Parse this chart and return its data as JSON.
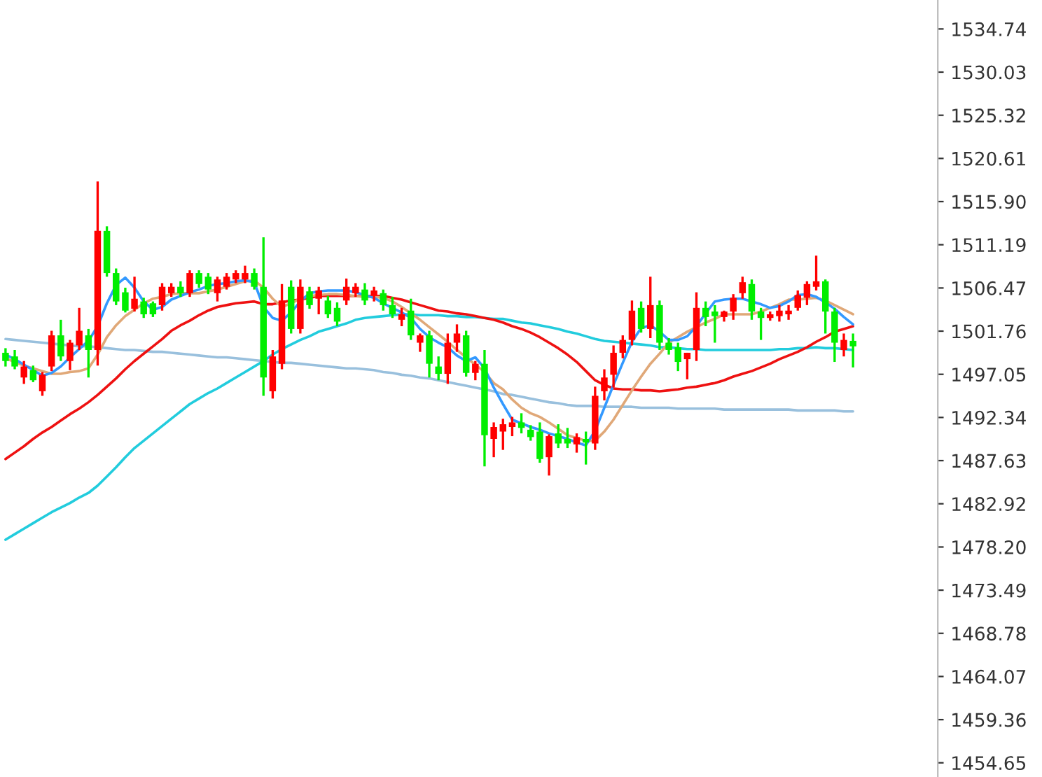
{
  "chart_data": {
    "type": "candlestick",
    "categories": [
      null,
      null,
      null,
      null,
      null,
      null,
      null,
      null,
      null,
      null,
      null,
      null,
      null,
      null,
      null,
      null,
      null,
      null,
      null,
      null,
      null,
      null,
      null,
      null,
      null,
      null,
      null,
      null,
      null,
      null,
      null,
      null,
      null,
      null,
      null,
      null,
      null,
      null,
      null,
      null,
      null,
      null,
      null,
      null,
      null,
      null,
      null,
      null,
      null,
      null,
      null,
      null,
      null,
      null,
      null,
      null,
      null,
      null,
      null,
      null,
      null,
      null,
      null,
      null,
      null,
      null,
      null,
      null,
      null,
      null,
      null,
      null,
      null,
      null,
      null,
      null,
      null,
      null,
      null,
      null,
      null,
      null,
      null,
      null,
      null,
      null,
      null,
      null,
      null,
      null,
      null,
      null,
      null
    ],
    "ohlc": [
      [
        1499.4,
        1499.9,
        1497.9,
        1498.5
      ],
      [
        1499.0,
        1499.7,
        1497.6,
        1497.9
      ],
      [
        1496.7,
        1498.5,
        1496.0,
        1497.9
      ],
      [
        1497.5,
        1498.0,
        1496.2,
        1496.4
      ],
      [
        1495.2,
        1497.3,
        1494.7,
        1497.0
      ],
      [
        1497.9,
        1501.8,
        1497.4,
        1501.3
      ],
      [
        1501.3,
        1503.0,
        1498.5,
        1499.0
      ],
      [
        1498.5,
        1500.8,
        1497.5,
        1500.5
      ],
      [
        1500.2,
        1504.3,
        1499.7,
        1501.8
      ],
      [
        1501.3,
        1502.0,
        1496.7,
        1499.7
      ],
      [
        1499.7,
        1518.1,
        1498.0,
        1512.7
      ],
      [
        1512.7,
        1513.2,
        1507.7,
        1508.1
      ],
      [
        1508.1,
        1508.6,
        1504.6,
        1505.0
      ],
      [
        1506.0,
        1506.5,
        1503.8,
        1504.0
      ],
      [
        1504.2,
        1507.7,
        1503.9,
        1505.3
      ],
      [
        1505.0,
        1505.4,
        1503.2,
        1503.6
      ],
      [
        1504.8,
        1505.0,
        1503.3,
        1503.6
      ],
      [
        1504.6,
        1507.0,
        1504.0,
        1506.6
      ],
      [
        1505.9,
        1507.0,
        1505.5,
        1506.6
      ],
      [
        1506.6,
        1507.2,
        1505.5,
        1505.9
      ],
      [
        1505.9,
        1508.4,
        1505.5,
        1508.1
      ],
      [
        1508.1,
        1508.4,
        1506.5,
        1506.9
      ],
      [
        1507.7,
        1508.1,
        1505.8,
        1506.3
      ],
      [
        1505.9,
        1507.7,
        1505.0,
        1507.4
      ],
      [
        1506.6,
        1508.1,
        1506.3,
        1507.7
      ],
      [
        1507.4,
        1508.4,
        1507.0,
        1508.1
      ],
      [
        1507.4,
        1508.9,
        1507.0,
        1508.1
      ],
      [
        1508.1,
        1508.6,
        1506.3,
        1506.6
      ],
      [
        1506.6,
        1512.0,
        1494.7,
        1496.7
      ],
      [
        1495.2,
        1499.7,
        1494.4,
        1499.0
      ],
      [
        1498.2,
        1506.9,
        1497.6,
        1505.1
      ],
      [
        1506.6,
        1507.3,
        1501.5,
        1502.0
      ],
      [
        1502.0,
        1507.4,
        1501.5,
        1506.6
      ],
      [
        1506.1,
        1506.6,
        1504.2,
        1504.6
      ],
      [
        1505.3,
        1506.6,
        1503.6,
        1506.2
      ],
      [
        1505.1,
        1505.6,
        1503.2,
        1503.6
      ],
      [
        1504.3,
        1504.9,
        1502.3,
        1502.8
      ],
      [
        1505.1,
        1507.5,
        1504.6,
        1506.6
      ],
      [
        1505.9,
        1507.0,
        1505.5,
        1506.6
      ],
      [
        1506.3,
        1507.0,
        1504.6,
        1505.1
      ],
      [
        1505.6,
        1506.6,
        1505.0,
        1506.2
      ],
      [
        1505.9,
        1506.3,
        1504.0,
        1504.6
      ],
      [
        1504.6,
        1505.5,
        1503.2,
        1503.6
      ],
      [
        1503.0,
        1504.3,
        1502.3,
        1503.6
      ],
      [
        1504.0,
        1505.3,
        1500.8,
        1501.3
      ],
      [
        1500.5,
        1501.5,
        1499.5,
        1501.3
      ],
      [
        1501.3,
        1501.8,
        1496.7,
        1498.2
      ],
      [
        1497.9,
        1499.0,
        1496.4,
        1497.1
      ],
      [
        1497.1,
        1501.5,
        1496.0,
        1500.5
      ],
      [
        1500.5,
        1502.5,
        1499.5,
        1501.5
      ],
      [
        1501.3,
        1501.8,
        1496.8,
        1497.2
      ],
      [
        1497.2,
        1498.5,
        1496.4,
        1498.2
      ],
      [
        1498.2,
        1499.7,
        1487.0,
        1490.4
      ],
      [
        1490.0,
        1491.8,
        1488.0,
        1491.3
      ],
      [
        1490.8,
        1492.2,
        1488.8,
        1491.6
      ],
      [
        1491.3,
        1492.4,
        1490.3,
        1491.8
      ],
      [
        1491.8,
        1492.8,
        1490.6,
        1491.2
      ],
      [
        1491.0,
        1491.5,
        1489.8,
        1490.2
      ],
      [
        1490.8,
        1491.8,
        1487.4,
        1487.8
      ],
      [
        1488.0,
        1490.5,
        1486.0,
        1490.3
      ],
      [
        1490.6,
        1491.6,
        1489.0,
        1489.5
      ],
      [
        1490.0,
        1491.2,
        1489.0,
        1489.5
      ],
      [
        1489.4,
        1490.6,
        1488.5,
        1490.2
      ],
      [
        1490.0,
        1490.8,
        1487.2,
        1489.6
      ],
      [
        1489.5,
        1495.7,
        1488.8,
        1494.7
      ],
      [
        1495.2,
        1497.6,
        1494.2,
        1496.7
      ],
      [
        1497.0,
        1500.2,
        1495.6,
        1499.4
      ],
      [
        1499.4,
        1501.3,
        1498.8,
        1500.8
      ],
      [
        1500.8,
        1505.1,
        1500.2,
        1504.0
      ],
      [
        1504.3,
        1505.0,
        1501.6,
        1502.0
      ],
      [
        1502.0,
        1507.7,
        1501.0,
        1504.6
      ],
      [
        1504.6,
        1505.1,
        1499.7,
        1500.5
      ],
      [
        1500.5,
        1501.0,
        1499.2,
        1499.7
      ],
      [
        1500.0,
        1500.5,
        1497.4,
        1498.4
      ],
      [
        1498.7,
        1499.4,
        1496.5,
        1499.4
      ],
      [
        1499.7,
        1506.0,
        1498.5,
        1504.3
      ],
      [
        1504.3,
        1505.0,
        1502.3,
        1503.3
      ],
      [
        1503.9,
        1504.6,
        1500.5,
        1503.4
      ],
      [
        1503.3,
        1504.0,
        1502.8,
        1503.9
      ],
      [
        1503.9,
        1505.8,
        1503.0,
        1505.4
      ],
      [
        1505.9,
        1507.7,
        1505.3,
        1507.1
      ],
      [
        1506.9,
        1507.4,
        1503.0,
        1503.9
      ],
      [
        1503.9,
        1504.3,
        1500.8,
        1503.2
      ],
      [
        1503.2,
        1503.9,
        1502.9,
        1503.6
      ],
      [
        1503.4,
        1504.6,
        1502.8,
        1504.0
      ],
      [
        1503.6,
        1504.6,
        1503.0,
        1504.0
      ],
      [
        1504.3,
        1506.2,
        1504.0,
        1505.7
      ],
      [
        1505.4,
        1507.2,
        1504.6,
        1506.9
      ],
      [
        1506.6,
        1510.0,
        1506.2,
        1507.2
      ],
      [
        1507.2,
        1507.4,
        1501.5,
        1503.9
      ],
      [
        1503.9,
        1504.3,
        1498.4,
        1500.5
      ],
      [
        1499.7,
        1501.5,
        1499.0,
        1500.8
      ],
      [
        1500.7,
        1501.5,
        1497.8,
        1500.1
      ]
    ],
    "colors": [
      "#00ee00",
      "#00ee00",
      "#ff0000",
      "#00ee00",
      "#ff0000",
      "#ff0000",
      "#00ee00",
      "#ff0000",
      "#ff0000",
      "#00ee00",
      "#ff0000",
      "#00ee00",
      "#00ee00",
      "#00ee00",
      "#ff0000",
      "#00ee00",
      "#00ee00",
      "#ff0000",
      "#ff0000",
      "#00ee00",
      "#ff0000",
      "#00ee00",
      "#00ee00",
      "#ff0000",
      "#ff0000",
      "#ff0000",
      "#ff0000",
      "#00ee00",
      "#00ee00",
      "#ff0000",
      "#ff0000",
      "#00ee00",
      "#ff0000",
      "#00ee00",
      "#ff0000",
      "#00ee00",
      "#00ee00",
      "#ff0000",
      "#ff0000",
      "#00ee00",
      "#ff0000",
      "#00ee00",
      "#00ee00",
      "#ff0000",
      "#00ee00",
      "#ff0000",
      "#00ee00",
      "#00ee00",
      "#ff0000",
      "#ff0000",
      "#00ee00",
      "#ff0000",
      "#00ee00",
      "#ff0000",
      "#ff0000",
      "#ff0000",
      "#00ee00",
      "#00ee00",
      "#00ee00",
      "#ff0000",
      "#00ee00",
      "#00ee00",
      "#ff0000",
      "#00ee00",
      "#ff0000",
      "#ff0000",
      "#ff0000",
      "#ff0000",
      "#ff0000",
      "#00ee00",
      "#ff0000",
      "#00ee00",
      "#00ee00",
      "#00ee00",
      "#ff0000",
      "#ff0000",
      "#00ee00",
      "#00ee00",
      "#ff0000",
      "#ff0000",
      "#ff0000",
      "#00ee00",
      "#00ee00",
      "#ff0000",
      "#ff0000",
      "#ff0000",
      "#ff0000",
      "#ff0000",
      "#ff0000",
      "#00ee00",
      "#00ee00",
      "#ff0000",
      "#00ee00"
    ],
    "series": [
      {
        "type": "line",
        "color": "#99c0dd",
        "values": [
          1500.9,
          1500.8,
          1500.7,
          1500.6,
          1500.5,
          1500.4,
          1500.3,
          1500.2,
          1500.1,
          1500.1,
          1500.0,
          1499.9,
          1499.8,
          1499.7,
          1499.7,
          1499.6,
          1499.5,
          1499.5,
          1499.4,
          1499.3,
          1499.2,
          1499.1,
          1499.0,
          1498.9,
          1498.9,
          1498.8,
          1498.7,
          1498.6,
          1498.5,
          1498.4,
          1498.3,
          1498.3,
          1498.2,
          1498.1,
          1498.0,
          1497.9,
          1497.8,
          1497.7,
          1497.7,
          1497.6,
          1497.5,
          1497.3,
          1497.2,
          1497.0,
          1496.9,
          1496.7,
          1496.6,
          1496.4,
          1496.2,
          1496.0,
          1495.8,
          1495.6,
          1495.4,
          1495.2,
          1494.9,
          1494.8,
          1494.6,
          1494.4,
          1494.2,
          1494.0,
          1493.9,
          1493.7,
          1493.6,
          1493.6,
          1493.6,
          1493.5,
          1493.5,
          1493.5,
          1493.5,
          1493.4,
          1493.4,
          1493.4,
          1493.4,
          1493.3,
          1493.3,
          1493.3,
          1493.3,
          1493.3,
          1493.2,
          1493.2,
          1493.2,
          1493.2,
          1493.2,
          1493.2,
          1493.2,
          1493.2,
          1493.1,
          1493.1,
          1493.1,
          1493.1,
          1493.1,
          1493.0,
          1493.0
        ]
      },
      {
        "type": "line",
        "color": "#22ccdd",
        "values": [
          1479.0,
          1479.6,
          1480.2,
          1480.8,
          1481.4,
          1482.0,
          1482.5,
          1483.0,
          1483.6,
          1484.1,
          1484.9,
          1485.9,
          1486.9,
          1488.0,
          1489.0,
          1489.8,
          1490.6,
          1491.4,
          1492.2,
          1493.0,
          1493.8,
          1494.4,
          1495.0,
          1495.5,
          1496.1,
          1496.7,
          1497.3,
          1497.9,
          1498.5,
          1499.2,
          1499.8,
          1500.3,
          1500.8,
          1501.2,
          1501.7,
          1502.0,
          1502.3,
          1502.6,
          1503.0,
          1503.2,
          1503.3,
          1503.4,
          1503.5,
          1503.6,
          1503.6,
          1503.5,
          1503.5,
          1503.5,
          1503.4,
          1503.4,
          1503.3,
          1503.3,
          1503.2,
          1503.1,
          1503.1,
          1502.9,
          1502.7,
          1502.6,
          1502.4,
          1502.2,
          1502.0,
          1501.7,
          1501.5,
          1501.2,
          1500.9,
          1500.7,
          1500.6,
          1500.5,
          1500.4,
          1500.3,
          1500.2,
          1500.0,
          1500.0,
          1499.9,
          1499.8,
          1499.8,
          1499.7,
          1499.7,
          1499.7,
          1499.7,
          1499.7,
          1499.7,
          1499.7,
          1499.7,
          1499.8,
          1499.8,
          1499.9,
          1499.9,
          1500.0,
          1499.9,
          1499.9,
          1499.8,
          1499.7
        ]
      },
      {
        "type": "line",
        "color": "#ee1111",
        "values": [
          1487.8,
          1488.5,
          1489.2,
          1490.0,
          1490.7,
          1491.3,
          1492.0,
          1492.7,
          1493.3,
          1494.0,
          1494.8,
          1495.7,
          1496.6,
          1497.6,
          1498.5,
          1499.3,
          1500.1,
          1500.9,
          1501.8,
          1502.4,
          1502.9,
          1503.5,
          1504.0,
          1504.4,
          1504.6,
          1504.8,
          1504.9,
          1505.0,
          1504.7,
          1504.7,
          1504.9,
          1505.1,
          1505.2,
          1505.4,
          1505.6,
          1505.6,
          1505.6,
          1505.6,
          1505.6,
          1505.6,
          1505.6,
          1505.6,
          1505.4,
          1505.2,
          1504.9,
          1504.6,
          1504.3,
          1504.0,
          1503.9,
          1503.7,
          1503.6,
          1503.4,
          1503.2,
          1503.0,
          1502.7,
          1502.3,
          1502.0,
          1501.6,
          1501.1,
          1500.5,
          1499.9,
          1499.2,
          1498.4,
          1497.4,
          1496.4,
          1495.9,
          1495.5,
          1495.4,
          1495.4,
          1495.3,
          1495.3,
          1495.2,
          1495.3,
          1495.4,
          1495.6,
          1495.7,
          1495.9,
          1496.1,
          1496.4,
          1496.8,
          1497.1,
          1497.4,
          1497.8,
          1498.2,
          1498.7,
          1499.1,
          1499.5,
          1500.0,
          1500.6,
          1501.1,
          1501.7,
          1502.0,
          1502.3
        ]
      },
      {
        "type": "line",
        "color": "#e0a878",
        "values": [
          1498.8,
          1498.4,
          1498.0,
          1497.7,
          1497.4,
          1497.1,
          1497.1,
          1497.3,
          1497.4,
          1497.7,
          1499.2,
          1501.1,
          1502.4,
          1503.4,
          1504.1,
          1504.8,
          1505.3,
          1505.5,
          1505.8,
          1505.9,
          1505.9,
          1505.9,
          1506.1,
          1506.3,
          1506.6,
          1506.9,
          1507.2,
          1507.3,
          1506.5,
          1505.3,
          1504.4,
          1504.8,
          1505.3,
          1505.6,
          1505.7,
          1505.8,
          1505.8,
          1505.7,
          1505.6,
          1505.5,
          1505.5,
          1505.4,
          1505.0,
          1504.4,
          1503.7,
          1503.0,
          1502.2,
          1501.4,
          1500.6,
          1499.7,
          1498.9,
          1498.1,
          1497.3,
          1496.1,
          1495.4,
          1494.3,
          1493.4,
          1492.8,
          1492.4,
          1491.8,
          1491.1,
          1490.4,
          1490.1,
          1489.8,
          1489.8,
          1490.8,
          1492.1,
          1493.7,
          1495.3,
          1496.8,
          1498.2,
          1499.3,
          1500.5,
          1501.1,
          1501.7,
          1502.2,
          1502.7,
          1503.1,
          1503.6,
          1503.6,
          1503.6,
          1503.6,
          1503.9,
          1504.3,
          1504.7,
          1505.2,
          1505.2,
          1505.3,
          1505.4,
          1505.1,
          1504.6,
          1504.1,
          1503.6
        ]
      },
      {
        "type": "line",
        "color": "#3399ff",
        "values": [
          1499.2,
          1498.7,
          1498.1,
          1497.5,
          1496.9,
          1497.2,
          1497.9,
          1498.9,
          1499.8,
          1500.7,
          1502.3,
          1504.8,
          1506.8,
          1507.6,
          1506.5,
          1505.0,
          1504.1,
          1504.4,
          1505.2,
          1505.6,
          1506.0,
          1506.3,
          1506.7,
          1506.9,
          1507.0,
          1507.2,
          1507.3,
          1507.1,
          1504.4,
          1503.2,
          1502.9,
          1503.8,
          1505.0,
          1505.9,
          1506.1,
          1506.2,
          1506.2,
          1506.2,
          1506.0,
          1505.7,
          1505.4,
          1504.8,
          1504.3,
          1503.8,
          1503.2,
          1502.0,
          1501.1,
          1500.5,
          1500.0,
          1499.1,
          1498.5,
          1498.9,
          1497.7,
          1495.6,
          1493.8,
          1492.1,
          1491.7,
          1491.3,
          1491.0,
          1490.6,
          1490.3,
          1490.0,
          1489.6,
          1489.3,
          1490.9,
          1493.4,
          1495.9,
          1498.3,
          1500.6,
          1502.1,
          1502.4,
          1501.7,
          1500.8,
          1500.8,
          1501.2,
          1502.3,
          1503.7,
          1505.0,
          1505.2,
          1505.3,
          1505.3,
          1505.0,
          1504.7,
          1504.3,
          1504.5,
          1505.0,
          1505.7,
          1505.8,
          1505.5,
          1504.9,
          1504.2,
          1503.3,
          1502.5
        ]
      }
    ],
    "ylim": [
      1453.1,
      1537.9
    ],
    "yticks": [
      {
        "value": 1534.74,
        "label": "1534.74"
      },
      {
        "value": 1530.03,
        "label": "1530.03"
      },
      {
        "value": 1525.32,
        "label": "1525.32"
      },
      {
        "value": 1520.61,
        "label": "1520.61"
      },
      {
        "value": 1515.9,
        "label": "1515.90"
      },
      {
        "value": 1511.19,
        "label": "1511.19"
      },
      {
        "value": 1506.47,
        "label": "1506.47"
      },
      {
        "value": 1501.76,
        "label": "1501.76"
      },
      {
        "value": 1497.05,
        "label": "1497.05"
      },
      {
        "value": 1492.34,
        "label": "1492.34"
      },
      {
        "value": 1487.63,
        "label": "1487.63"
      },
      {
        "value": 1482.92,
        "label": "1482.92"
      },
      {
        "value": 1478.2,
        "label": "1478.20"
      },
      {
        "value": 1473.49,
        "label": "1473.49"
      },
      {
        "value": 1468.78,
        "label": "1468.78"
      },
      {
        "value": 1464.07,
        "label": "1464.07"
      },
      {
        "value": 1459.36,
        "label": "1459.36"
      },
      {
        "value": 1454.65,
        "label": "1454.65"
      }
    ],
    "tick_labels": "y",
    "grid": false,
    "legend": false
  }
}
